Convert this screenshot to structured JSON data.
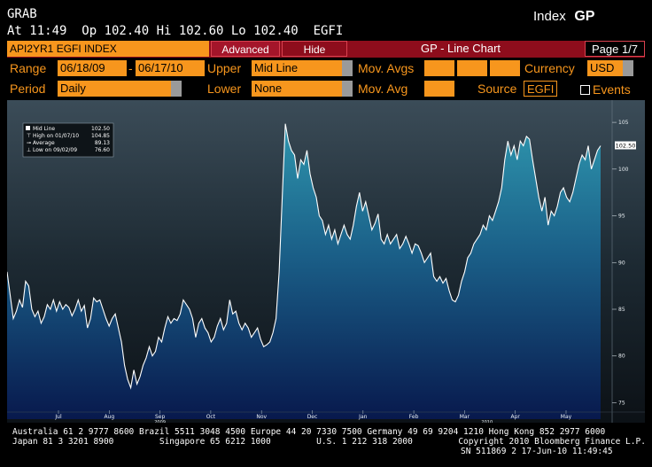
{
  "header": {
    "app_name": "GRAB",
    "quote_line": "At 11:49  Op 102.40 Hi 102.60 Lo 102.40  EGFI",
    "index_label": "Index",
    "function_code": "GP"
  },
  "cmdbar": {
    "security": "API2YR1 EGFI INDEX",
    "advanced": "Advanced",
    "hide": "Hide",
    "title": "GP - Line Chart",
    "page": "Page 1/7"
  },
  "params": {
    "range_label": "Range",
    "range_start": "06/18/09",
    "range_sep": "-",
    "range_end": "06/17/10",
    "upper_label": "Upper",
    "upper_value": "Mid Line",
    "mov_avgs_label": "Mov. Avgs",
    "currency_label": "Currency",
    "currency_value": "USD",
    "period_label": "Period",
    "period_value": "Daily",
    "lower_label": "Lower",
    "lower_value": "None",
    "mov_avg_label": "Mov. Avg",
    "source_label": "Source",
    "source_value": "EGFI",
    "events_label": "Events"
  },
  "colors": {
    "bloomberg_orange": "#f7961d",
    "command_red": "#8e0d1c",
    "area_top": "#2a8fa8",
    "area_bottom": "#0b1d52",
    "line": "#ffffff"
  },
  "legend": {
    "mid_line": "Mid Line",
    "mid_value": "102.50",
    "high": "High on 01/07/10",
    "high_value": "104.85",
    "average": "Average",
    "average_value": "89.13",
    "low": "Low on 09/02/09",
    "low_value": "76.60",
    "last_price_tag": "102.50"
  },
  "chart_data": {
    "type": "area",
    "title": "",
    "xlabel": "",
    "ylabel": "",
    "ylim": [
      74,
      107
    ],
    "y_ticks": [
      75,
      80,
      85,
      90,
      95,
      100,
      105
    ],
    "month_ticks": [
      "Jul",
      "Aug",
      "Sep",
      "Oct",
      "Nov",
      "Dec",
      "Jan",
      "Feb",
      "Mar",
      "Apr",
      "May"
    ],
    "year_ticks": [
      "2009",
      "2010"
    ],
    "series": [
      {
        "values": [
          89.0,
          86.5,
          84.0,
          84.8,
          86.0,
          85.2,
          88.0,
          87.5,
          85.0,
          84.2,
          84.8,
          83.5,
          84.2,
          85.5,
          85.0,
          86.0,
          84.8,
          85.8,
          85.0,
          85.5,
          85.2,
          84.3,
          85.0,
          86.0,
          84.8,
          85.4,
          83.0,
          84.0,
          86.2,
          85.8,
          86.0,
          85.0,
          84.0,
          83.2,
          84.0,
          84.5,
          83.0,
          81.5,
          79.0,
          77.5,
          76.6,
          78.5,
          77.0,
          77.8,
          79.0,
          79.8,
          81.0,
          80.0,
          80.5,
          82.0,
          81.5,
          83.0,
          84.2,
          83.5,
          84.0,
          83.8,
          84.5,
          86.0,
          85.5,
          85.0,
          84.0,
          82.0,
          83.5,
          84.0,
          83.0,
          82.5,
          81.5,
          82.0,
          83.2,
          84.0,
          82.8,
          83.5,
          86.0,
          84.5,
          84.8,
          83.5,
          82.8,
          83.5,
          83.0,
          82.0,
          82.5,
          83.0,
          81.8,
          81.0,
          81.2,
          81.5,
          82.5,
          84.0,
          89.0,
          97.0,
          104.85,
          103.0,
          102.0,
          101.5,
          99.0,
          101.0,
          100.5,
          102.0,
          99.5,
          98.0,
          97.0,
          95.0,
          94.5,
          93.0,
          94.0,
          92.5,
          93.5,
          92.0,
          93.0,
          94.0,
          93.0,
          92.5,
          94.0,
          96.0,
          97.5,
          95.5,
          96.5,
          95.0,
          93.5,
          94.2,
          95.2,
          92.5,
          92.0,
          93.0,
          92.0,
          92.5,
          93.0,
          91.5,
          92.0,
          92.8,
          92.0,
          91.0,
          92.0,
          91.8,
          91.0,
          90.0,
          90.5,
          91.0,
          88.5,
          88.0,
          88.5,
          87.8,
          88.3,
          87.0,
          86.0,
          85.8,
          86.5,
          88.0,
          89.0,
          90.5,
          91.0,
          92.0,
          92.5,
          93.0,
          94.0,
          93.5,
          95.0,
          94.5,
          95.5,
          96.5,
          98.0,
          101.0,
          103.0,
          101.5,
          102.5,
          101.0,
          103.0,
          102.5,
          103.5,
          103.2,
          101.0,
          99.0,
          97.0,
          95.5,
          97.0,
          94.0,
          95.5,
          95.0,
          96.0,
          97.5,
          98.0,
          97.0,
          96.5,
          97.5,
          99.0,
          100.5,
          101.5,
          101.0,
          102.5,
          100.0,
          101.0,
          102.0,
          102.5
        ]
      }
    ]
  },
  "footer": {
    "line1": "Australia 61 2 9777 8600 Brazil 5511 3048 4500 Europe 44 20 7330 7500 Germany 49 69 9204 1210 Hong Kong 852 2977 6000",
    "line2": "Japan 81 3 3201 8900         Singapore 65 6212 1000         U.S. 1 212 318 2000         Copyright 2010 Bloomberg Finance L.P.",
    "line3": "SN 511869 2 17-Jun-10 11:49:45"
  }
}
